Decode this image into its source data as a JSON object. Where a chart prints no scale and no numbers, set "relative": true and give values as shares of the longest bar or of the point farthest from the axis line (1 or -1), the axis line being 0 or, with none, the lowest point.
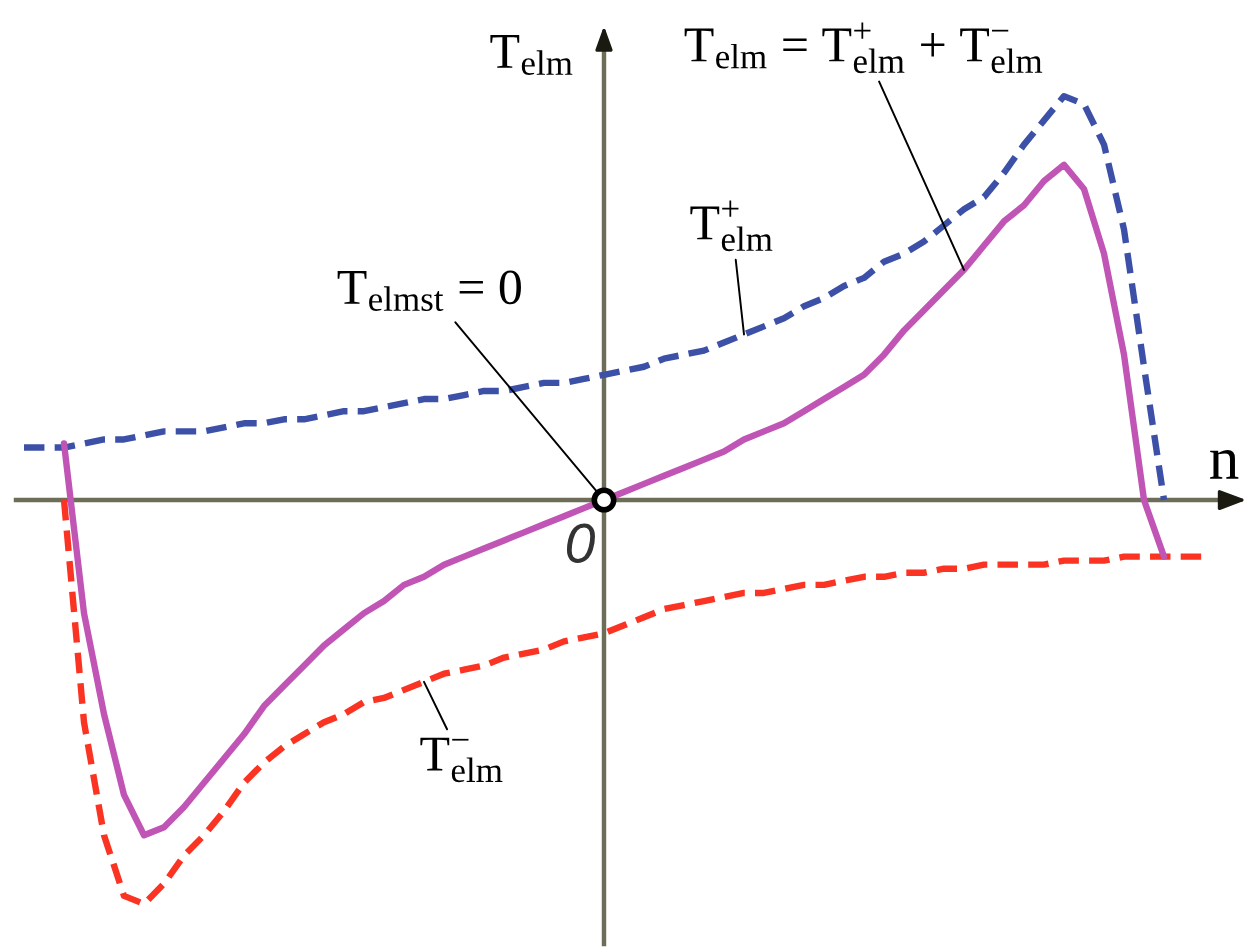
{
  "chart_data": {
    "type": "line",
    "relative": true,
    "xlabel": "n",
    "ylabel": "T$_{elm}$",
    "categories": [
      null,
      null,
      null,
      null,
      null,
      null,
      null,
      null,
      null,
      null,
      null,
      null,
      null,
      null,
      null,
      null,
      null,
      null,
      null,
      null,
      null,
      null,
      null,
      null,
      null,
      null,
      null,
      null,
      null,
      null,
      null,
      null,
      null,
      null,
      null,
      null,
      null,
      null,
      null,
      null,
      null,
      null,
      null,
      null,
      null,
      null,
      null,
      null,
      null,
      null,
      null,
      null,
      null,
      null,
      null,
      null,
      null,
      null,
      null,
      null
    ],
    "series": [
      {
        "name": "T$^{+}$$_{elm}$",
        "color": "#3c50a8",
        "line_style": "dashed",
        "values": [
          0.13,
          0.13,
          0.13,
          0.14,
          0.15,
          0.15,
          0.16,
          0.17,
          0.17,
          0.17,
          0.18,
          0.19,
          0.19,
          0.2,
          0.2,
          0.21,
          0.22,
          0.22,
          0.23,
          0.24,
          0.25,
          0.25,
          0.26,
          0.27,
          0.27,
          0.28,
          0.29,
          0.29,
          0.3,
          0.31,
          0.32,
          0.33,
          0.35,
          0.36,
          0.37,
          0.39,
          0.41,
          0.43,
          0.45,
          0.48,
          0.5,
          0.53,
          0.55,
          0.59,
          0.61,
          0.64,
          0.68,
          0.72,
          0.75,
          0.81,
          0.88,
          0.94,
          1.0,
          0.98,
          0.88,
          0.67,
          0.33,
          0.0,
          null,
          null
        ]
      },
      {
        "name": "T$^{−}$$_{elm}$",
        "color": "#fa3322",
        "line_style": "dashed",
        "values": [
          null,
          null,
          0.0,
          -0.55,
          -0.83,
          -0.98,
          -1.0,
          -0.95,
          -0.88,
          -0.83,
          -0.77,
          -0.7,
          -0.65,
          -0.61,
          -0.58,
          -0.55,
          -0.53,
          -0.5,
          -0.49,
          -0.47,
          -0.45,
          -0.43,
          -0.42,
          -0.41,
          -0.39,
          -0.38,
          -0.37,
          -0.35,
          -0.34,
          -0.33,
          -0.31,
          -0.29,
          -0.27,
          -0.26,
          -0.25,
          -0.24,
          -0.23,
          -0.23,
          -0.22,
          -0.21,
          -0.21,
          -0.2,
          -0.19,
          -0.19,
          -0.18,
          -0.18,
          -0.17,
          -0.17,
          -0.16,
          -0.16,
          -0.16,
          -0.16,
          -0.15,
          -0.15,
          -0.15,
          -0.14,
          -0.14,
          -0.14,
          -0.14,
          -0.14
        ]
      },
      {
        "name": "T$_{elm}$ = T$^{+}$$_{elm}$ + T$^{−}$$_{elm}$",
        "color": "#c055b5",
        "line_style": "solid",
        "values": [
          null,
          null,
          0.14,
          -0.28,
          -0.53,
          -0.73,
          -0.83,
          -0.81,
          -0.76,
          -0.7,
          -0.64,
          -0.58,
          -0.51,
          -0.46,
          -0.41,
          -0.36,
          -0.32,
          -0.28,
          -0.25,
          -0.21,
          -0.19,
          -0.16,
          -0.14,
          -0.12,
          -0.1,
          -0.08,
          -0.06,
          -0.04,
          -0.02,
          0.0,
          0.02,
          0.04,
          0.06,
          0.08,
          0.1,
          0.12,
          0.15,
          0.17,
          0.19,
          0.22,
          0.25,
          0.28,
          0.31,
          0.36,
          0.42,
          0.47,
          0.52,
          0.57,
          0.63,
          0.69,
          0.73,
          0.79,
          0.83,
          0.77,
          0.61,
          0.36,
          0.0,
          -0.14,
          null,
          null
        ]
      }
    ],
    "annotations": [
      "T$_{elmst}$ = 0",
      "0"
    ]
  }
}
